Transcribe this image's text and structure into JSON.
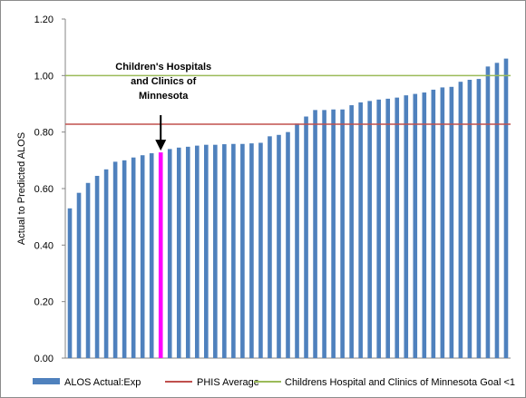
{
  "chart_data": {
    "type": "bar",
    "ylabel": "Actual to Predicted ALOS",
    "ylim": [
      0,
      1.2
    ],
    "yticks": [
      "0.00",
      "0.20",
      "0.40",
      "0.60",
      "0.80",
      "1.00",
      "1.20"
    ],
    "grid": false,
    "legend_position": "bottom",
    "series": [
      {
        "name": "ALOS Actual:Exp",
        "color": "#4f81bd",
        "values": [
          0.53,
          0.585,
          0.62,
          0.645,
          0.668,
          0.695,
          0.7,
          0.71,
          0.718,
          0.725,
          0.728,
          0.74,
          0.745,
          0.748,
          0.752,
          0.755,
          0.755,
          0.757,
          0.758,
          0.758,
          0.76,
          0.762,
          0.785,
          0.79,
          0.8,
          0.83,
          0.855,
          0.878,
          0.878,
          0.88,
          0.88,
          0.895,
          0.905,
          0.91,
          0.915,
          0.918,
          0.922,
          0.93,
          0.935,
          0.94,
          0.95,
          0.958,
          0.96,
          0.978,
          0.985,
          0.988,
          1.032,
          1.045,
          1.06
        ],
        "highlight_index": 10,
        "highlight_color": "#ff00ff"
      }
    ],
    "reference_lines": [
      {
        "name": "PHIS Average",
        "value": 0.828,
        "color": "#c0504d"
      },
      {
        "name": "Childrens Hospital and Clinics of Minnesota Goal <1",
        "value": 1.0,
        "color": "#9bbb59"
      }
    ],
    "annotation": {
      "lines": [
        "Children's Hospitals",
        "and Clinics of",
        "Minnesota"
      ],
      "target_index": 10
    }
  }
}
